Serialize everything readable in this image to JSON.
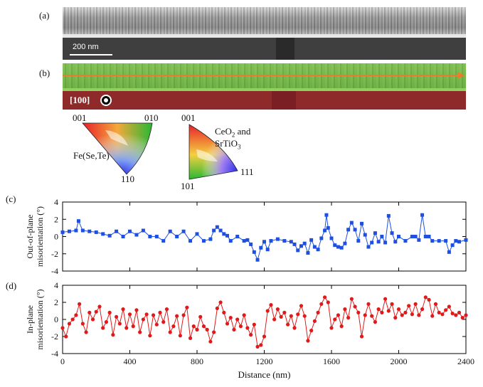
{
  "panels": {
    "a": "(a)",
    "b": "(b)",
    "c": "(c)",
    "d": "(d)"
  },
  "tem": {
    "scale_label": "200 nm"
  },
  "ebsd": {
    "direction_label": "[100]"
  },
  "ipf_left": {
    "corner_top_left": "001",
    "corner_top_right": "010",
    "corner_bottom": "110",
    "material": "Fe(Se,Te)"
  },
  "ipf_right": {
    "corner_top": "001",
    "corner_right": "111",
    "corner_bottom": "101",
    "material_line1": "CeO",
    "material_sub": "2",
    "material_and": " and",
    "material_line2": "SrTiO",
    "material_line2_sub": "3"
  },
  "colors": {
    "out_of_plane_series": "#1f4fe0",
    "in_plane_series": "#e01a1a",
    "ebsd_line": "#f07a2a"
  },
  "chart_data": [
    {
      "type": "line",
      "panel": "(c)",
      "ylabel_line1": "Out-of-plane",
      "ylabel_line2": "misorientation (°)",
      "xlim": [
        0,
        2400
      ],
      "ylim": [
        -4,
        4
      ],
      "xticks": [
        "0",
        "400",
        "800",
        "1200",
        "1600",
        "2000",
        "2400"
      ],
      "yticks": [
        "4",
        "2",
        "0",
        "-2",
        "-4"
      ],
      "grid": false,
      "marker": "square",
      "series": [
        {
          "x": [
            0,
            40,
            80,
            95,
            120,
            160,
            200,
            240,
            280,
            320,
            360,
            400,
            440,
            480,
            520,
            560,
            600,
            640,
            680,
            720,
            760,
            800,
            840,
            880,
            900,
            920,
            940,
            960,
            980,
            1000,
            1040,
            1080,
            1100,
            1120,
            1140,
            1160,
            1180,
            1200,
            1220,
            1240,
            1280,
            1320,
            1360,
            1380,
            1400,
            1420,
            1440,
            1460,
            1480,
            1500,
            1520,
            1540,
            1560,
            1570,
            1580,
            1600,
            1620,
            1640,
            1660,
            1680,
            1700,
            1720,
            1740,
            1760,
            1780,
            1800,
            1820,
            1840,
            1860,
            1880,
            1900,
            1920,
            1940,
            1960,
            1980,
            2000,
            2040,
            2080,
            2100,
            2120,
            2140,
            2160,
            2180,
            2200,
            2240,
            2280,
            2300,
            2320,
            2340,
            2360,
            2400
          ],
          "y": [
            0.5,
            0.6,
            0.7,
            1.8,
            0.7,
            0.6,
            0.5,
            0.3,
            0.1,
            0.6,
            0.0,
            0.6,
            0.2,
            0.7,
            0.0,
            0.0,
            -0.5,
            0.6,
            0.0,
            0.6,
            -0.5,
            0.3,
            -0.5,
            -0.3,
            0.7,
            1.1,
            0.7,
            0.3,
            0.1,
            -0.5,
            0.0,
            -0.5,
            -0.4,
            -0.9,
            -1.8,
            -2.7,
            -1.3,
            -0.6,
            -1.5,
            -0.5,
            -0.3,
            -0.5,
            -0.6,
            -0.9,
            -1.6,
            -1.1,
            -0.8,
            -1.9,
            -0.4,
            -1.2,
            -1.5,
            -0.2,
            0.7,
            2.5,
            1.0,
            -0.2,
            -1.0,
            -1.2,
            -1.3,
            -0.8,
            0.8,
            1.6,
            0.8,
            -0.5,
            1.5,
            0.2,
            -1.2,
            -0.7,
            0.4,
            -0.6,
            0.0,
            -0.7,
            2.4,
            0.4,
            -0.6,
            0.0,
            -0.5,
            0.0,
            0.0,
            -0.4,
            2.5,
            0.0,
            0.0,
            -0.5,
            -0.5,
            -0.5,
            -1.8,
            -1.0,
            -0.5,
            -0.6,
            -0.4
          ]
        }
      ]
    },
    {
      "type": "line",
      "panel": "(d)",
      "xlabel": "Distance (nm)",
      "ylabel_line1": "In-plane",
      "ylabel_line2": "misorientation (°)",
      "xlim": [
        0,
        2400
      ],
      "ylim": [
        -4,
        4
      ],
      "xticks": [
        "0",
        "400",
        "800",
        "1200",
        "1600",
        "2000",
        "2400"
      ],
      "yticks": [
        "4",
        "2",
        "0",
        "-2",
        "-4"
      ],
      "grid": false,
      "marker": "circle",
      "series": [
        {
          "x": [
            0,
            20,
            40,
            60,
            80,
            100,
            120,
            140,
            160,
            180,
            200,
            220,
            240,
            260,
            280,
            300,
            320,
            340,
            360,
            380,
            400,
            420,
            440,
            460,
            480,
            500,
            520,
            540,
            560,
            580,
            600,
            620,
            640,
            660,
            680,
            700,
            720,
            740,
            760,
            780,
            800,
            820,
            840,
            860,
            880,
            900,
            920,
            940,
            960,
            980,
            1000,
            1020,
            1040,
            1060,
            1080,
            1100,
            1120,
            1140,
            1160,
            1180,
            1200,
            1220,
            1240,
            1260,
            1280,
            1300,
            1320,
            1340,
            1360,
            1380,
            1400,
            1420,
            1440,
            1460,
            1480,
            1500,
            1520,
            1540,
            1560,
            1580,
            1600,
            1620,
            1640,
            1660,
            1680,
            1700,
            1720,
            1740,
            1760,
            1780,
            1800,
            1820,
            1840,
            1860,
            1880,
            1900,
            1920,
            1940,
            1960,
            1980,
            2000,
            2020,
            2040,
            2060,
            2080,
            2100,
            2120,
            2140,
            2160,
            2180,
            2200,
            2220,
            2240,
            2260,
            2280,
            2300,
            2320,
            2340,
            2360,
            2380,
            2400
          ],
          "y": [
            -1.0,
            -2.0,
            -0.5,
            0.0,
            0.5,
            1.8,
            -0.5,
            -1.5,
            0.8,
            0.0,
            0.9,
            1.5,
            -1.0,
            -0.3,
            0.8,
            -1.8,
            0.3,
            -0.5,
            1.2,
            -1.0,
            0.6,
            -0.8,
            1.1,
            -1.5,
            0.0,
            0.6,
            -1.9,
            0.5,
            -0.6,
            0.8,
            -0.3,
            1.2,
            -1.5,
            -0.8,
            0.4,
            -1.9,
            0.5,
            1.4,
            -2.2,
            -0.8,
            -1.2,
            0.3,
            -0.8,
            -1.2,
            -2.6,
            -1.5,
            1.3,
            2.0,
            0.8,
            -0.5,
            0.2,
            -1.2,
            0.0,
            -0.8,
            0.5,
            -1.0,
            -1.8,
            -0.6,
            -3.2,
            -3.0,
            -2.0,
            1.0,
            1.7,
            0.0,
            1.2,
            0.3,
            0.8,
            -0.6,
            0.4,
            -1.0,
            0.6,
            1.6,
            0.4,
            -2.5,
            -1.3,
            -0.2,
            0.8,
            1.8,
            2.6,
            2.0,
            -1.0,
            0.0,
            0.5,
            -0.8,
            1.2,
            0.2,
            2.4,
            1.5,
            0.8,
            -2.0,
            0.5,
            1.8,
            0.4,
            -0.3,
            1.2,
            0.8,
            2.4,
            1.0,
            1.8,
            0.2,
            1.2,
            0.5,
            0.8,
            1.6,
            0.6,
            1.8,
            0.5,
            1.2,
            2.6,
            2.3,
            0.4,
            1.8,
            0.8,
            0.6,
            1.1,
            1.5,
            0.7,
            0.5,
            0.8,
            0.2,
            0.5
          ]
        }
      ]
    }
  ]
}
